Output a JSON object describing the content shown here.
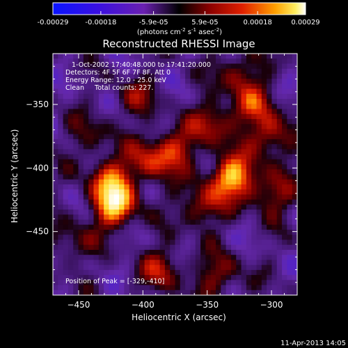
{
  "colorbar": {
    "ticks": [
      "-0.00029",
      "-0.00018",
      "-5.9e-05",
      "5.9e-05",
      "0.00018",
      "0.00029"
    ],
    "tick_values": [
      -0.00029,
      -0.00018,
      -5.9e-05,
      5.9e-05,
      0.00018,
      0.00029
    ],
    "units_prefix": "(photons cm",
    "units_exp1": "-2",
    "units_mid": " s",
    "units_exp2": "-1",
    "units_mid2": " asec",
    "units_exp3": "-2",
    "units_suffix": ")",
    "range": [
      -0.00029,
      0.00029
    ],
    "colormap": "rainbow/hot (blue-purple-red-orange-yellow-white)"
  },
  "chart_data": {
    "type": "heatmap",
    "title": "Reconstructed RHESSI Image",
    "xlabel": "Heliocentric X (arcsec)",
    "ylabel": "Heliocentric Y (arcsec)",
    "xlim": [
      -470,
      -280
    ],
    "ylim": [
      -500,
      -310
    ],
    "x_ticks": [
      -450,
      -400,
      -350,
      -300
    ],
    "y_ticks": [
      -450,
      -400,
      -350
    ],
    "x_tick_labels": [
      "−450",
      "−400",
      "−350",
      "−300"
    ],
    "y_tick_labels": [
      "−450",
      "−400",
      "−350"
    ],
    "annotations": [
      "1-Oct-2002 17:40:48.000 to 17:41:20.000",
      "Detectors: 4F 5F 6F 7F 8F, Att 0",
      "Energy Range: 12.0 - 25.0 keV",
      "Clean     Total counts: 227."
    ],
    "peak_label": "Position of Peak = [-329,-410]",
    "peak_position": [
      -329,
      -410
    ],
    "sources": [
      {
        "x": -330,
        "y": -407,
        "amplitude": 1.0
      },
      {
        "x": -422,
        "y": -430,
        "amplitude": 0.95
      },
      {
        "x": -425,
        "y": -410,
        "amplitude": 0.7
      },
      {
        "x": -375,
        "y": -385,
        "amplitude": 0.55
      },
      {
        "x": -395,
        "y": -395,
        "amplitude": 0.55
      },
      {
        "x": -300,
        "y": -375,
        "amplitude": 0.6
      },
      {
        "x": -315,
        "y": -350,
        "amplitude": 0.5
      },
      {
        "x": -345,
        "y": -365,
        "amplitude": 0.55
      },
      {
        "x": -355,
        "y": -430,
        "amplitude": 0.55
      },
      {
        "x": -300,
        "y": -420,
        "amplitude": 0.5
      },
      {
        "x": -385,
        "y": -480,
        "amplitude": 0.5
      },
      {
        "x": -340,
        "y": -485,
        "amplitude": 0.45
      },
      {
        "x": -455,
        "y": -460,
        "amplitude": 0.35
      },
      {
        "x": -405,
        "y": -345,
        "amplitude": 0.35
      },
      {
        "x": -325,
        "y": -325,
        "amplitude": 0.45
      },
      {
        "x": -440,
        "y": -375,
        "amplitude": 0.3
      }
    ]
  },
  "timestamp": "11-Apr-2013 14:05"
}
